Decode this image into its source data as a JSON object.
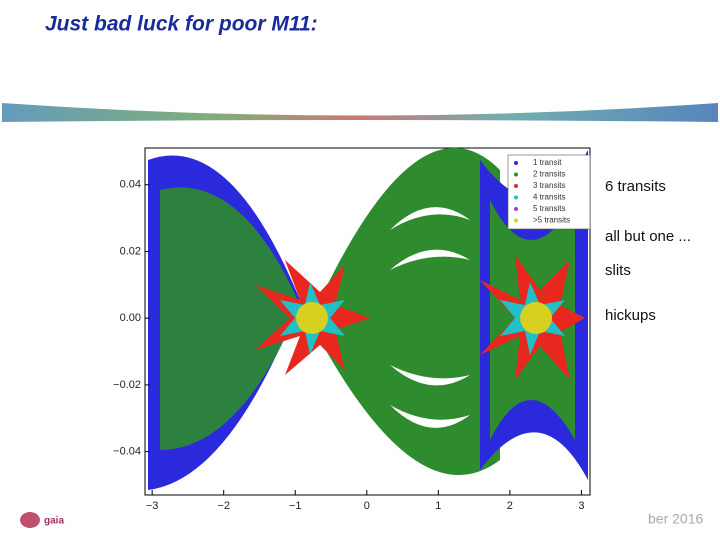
{
  "header": {
    "title": "Just bad luck for poor M11:"
  },
  "plot": {
    "xlim": [
      -3.1,
      3.12
    ],
    "ylim": [
      -0.053,
      0.051
    ],
    "xticks": [
      {
        "value": -3,
        "label": "−3"
      },
      {
        "value": -2,
        "label": "−2"
      },
      {
        "value": -1,
        "label": "−1"
      },
      0,
      1,
      2,
      3
    ],
    "yticks": [
      {
        "value": 0.04,
        "label": "0.04"
      },
      {
        "value": 0.02,
        "label": "0.02"
      },
      {
        "value": 0,
        "label": "0.00"
      },
      {
        "value": -0.02,
        "label": "−0.02"
      },
      {
        "value": -0.04,
        "label": "−0.04"
      }
    ],
    "legend": [
      {
        "name": "1 transit",
        "color": "#2a2adc"
      },
      {
        "name": "2 transits",
        "color": "#2e8b2e"
      },
      {
        "name": "3 transits",
        "color": "#e8281e"
      },
      {
        "name": "4 transits",
        "color": "#20c0c8"
      },
      {
        "name": "5 transits",
        "color": "#b040b0"
      },
      {
        "name": ">5 transits",
        "color": "#d8d020"
      }
    ]
  },
  "bullets": [
    "6 transits",
    "all but one ...",
    "slits",
    "hickups"
  ],
  "footer": {
    "logo": "gaia",
    "date": "ber 2016"
  }
}
